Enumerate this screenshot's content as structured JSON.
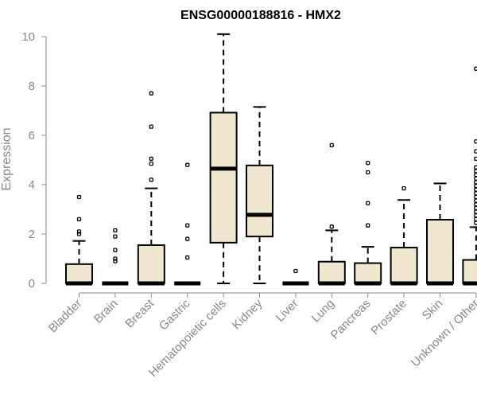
{
  "chart_data": {
    "type": "box",
    "title": "ENSG00000188816 - HMX2",
    "ylabel": "Expression",
    "xlabel": "",
    "ylim": [
      0,
      10
    ],
    "yticks": [
      0,
      2,
      4,
      6,
      8,
      10
    ],
    "colors": {
      "box_fill": "#efe8cf",
      "box_stroke": "#000000",
      "axis": "#888888"
    },
    "categories": [
      "Bladder",
      "Brain",
      "Breast",
      "Gastric",
      "Hematopoietic cells",
      "Kidney",
      "Liver",
      "Lung",
      "Pancreas",
      "Prostate",
      "Skin",
      "Unknown / Other"
    ],
    "boxes": [
      {
        "category": "Bladder",
        "q1": 0,
        "median": 0,
        "q3": 0.78,
        "whisker_low": 0,
        "whisker_high": 1.72,
        "outliers": [
          2.0,
          2.1,
          2.6,
          3.5
        ]
      },
      {
        "category": "Brain",
        "q1": 0,
        "median": 0,
        "q3": 0,
        "whisker_low": 0,
        "whisker_high": 0,
        "outliers": [
          0.9,
          1.0,
          1.35,
          1.9,
          2.15
        ]
      },
      {
        "category": "Breast",
        "q1": 0,
        "median": 0,
        "q3": 1.55,
        "whisker_low": 0,
        "whisker_high": 3.85,
        "outliers": [
          4.2,
          4.85,
          5.05,
          6.35,
          7.7
        ]
      },
      {
        "category": "Gastric",
        "q1": 0,
        "median": 0,
        "q3": 0,
        "whisker_low": 0,
        "whisker_high": 0,
        "outliers": [
          1.05,
          1.8,
          2.35,
          4.8
        ]
      },
      {
        "category": "Hematopoietic cells",
        "q1": 1.65,
        "median": 4.65,
        "q3": 6.92,
        "whisker_low": 0,
        "whisker_high": 10.1,
        "outliers": []
      },
      {
        "category": "Kidney",
        "q1": 1.9,
        "median": 2.78,
        "q3": 4.78,
        "whisker_low": 0,
        "whisker_high": 7.15,
        "outliers": []
      },
      {
        "category": "Liver",
        "q1": 0,
        "median": 0,
        "q3": 0,
        "whisker_low": 0,
        "whisker_high": 0,
        "outliers": [
          0.5
        ]
      },
      {
        "category": "Lung",
        "q1": 0,
        "median": 0,
        "q3": 0.88,
        "whisker_low": 0,
        "whisker_high": 2.15,
        "outliers": [
          2.3,
          5.6
        ]
      },
      {
        "category": "Pancreas",
        "q1": 0,
        "median": 0,
        "q3": 0.82,
        "whisker_low": 0,
        "whisker_high": 1.48,
        "outliers": [
          2.35,
          3.25,
          4.5,
          4.88
        ]
      },
      {
        "category": "Prostate",
        "q1": 0,
        "median": 0,
        "q3": 1.45,
        "whisker_low": 0,
        "whisker_high": 3.38,
        "outliers": [
          3.85
        ]
      },
      {
        "category": "Skin",
        "q1": 0,
        "median": 0,
        "q3": 2.58,
        "whisker_low": 0,
        "whisker_high": 4.05,
        "outliers": []
      },
      {
        "category": "Unknown / Other",
        "q1": 0,
        "median": 0,
        "q3": 0.95,
        "whisker_low": 0,
        "whisker_high": 2.28,
        "outliers": [
          2.45,
          2.6,
          2.75,
          2.9,
          3.05,
          3.2,
          3.35,
          3.5,
          3.65,
          3.8,
          3.95,
          4.1,
          4.25,
          4.4,
          4.55,
          4.7,
          5.05,
          5.35,
          5.75,
          8.7
        ]
      }
    ]
  }
}
